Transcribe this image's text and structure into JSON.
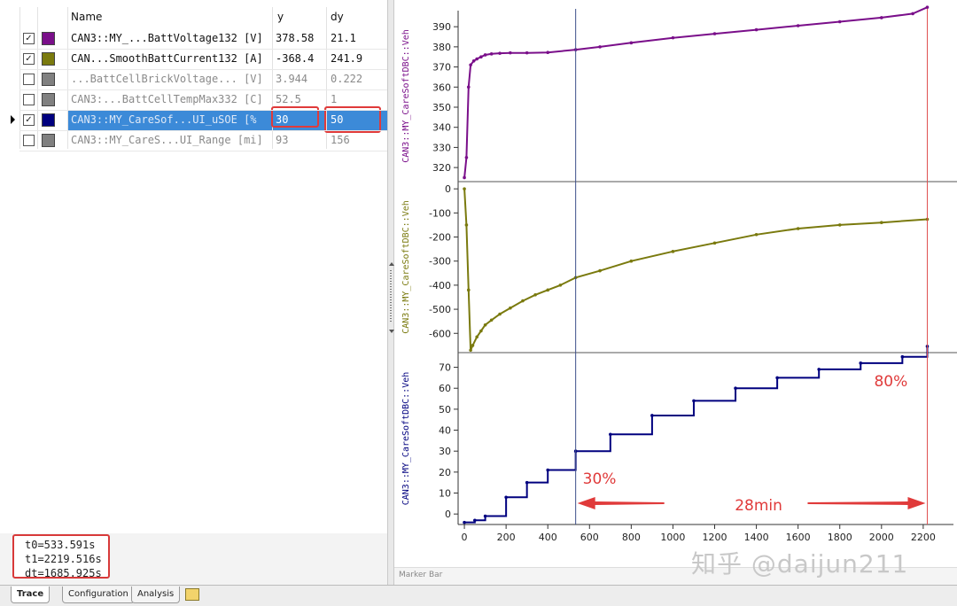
{
  "table": {
    "headers": {
      "name": "Name",
      "y": "y",
      "dy": "dy"
    },
    "rows": [
      {
        "name": "CAN3::MY_...BattVoltage132 [V]",
        "y": "378.58",
        "dy": "21.1",
        "color": "#7a0f8a",
        "checked": true,
        "active": true,
        "selected": false
      },
      {
        "name": "CAN...SmoothBattCurrent132 [A]",
        "y": "-368.4",
        "dy": "241.9",
        "color": "#7a7a0e",
        "checked": true,
        "active": true,
        "selected": false
      },
      {
        "name": "...BattCellBrickVoltage... [V]",
        "y": "3.944",
        "dy": "0.222",
        "color": "#808080",
        "checked": false,
        "active": false,
        "selected": false
      },
      {
        "name": "CAN3:...BattCellTempMax332 [C]",
        "y": "52.5",
        "dy": "1",
        "color": "#808080",
        "checked": false,
        "active": false,
        "selected": false
      },
      {
        "name": "CAN3::MY_CareSof...UI_uSOE [%",
        "y": "30",
        "dy": "50",
        "color": "#00007f",
        "checked": true,
        "active": true,
        "selected": true
      },
      {
        "name": "CAN3::MY_CareS...UI_Range [mi]",
        "y": "93",
        "dy": "156",
        "color": "#808080",
        "checked": false,
        "active": false,
        "selected": false
      }
    ]
  },
  "status": {
    "t0": "t0=533.591s",
    "t1": "t1=2219.516s",
    "dt": "dt=1685.925s"
  },
  "tabs": {
    "trace": "Trace",
    "configuration": "Configuration",
    "analysis": "Analysis"
  },
  "marker_bar": "Marker Bar",
  "watermark": "知乎 @daijun211",
  "chart_data": [
    {
      "type": "line",
      "ylabel": "CAN3::MY_CareSoftDBC::Veh",
      "ylim": [
        313,
        398
      ],
      "yticks": [
        320,
        330,
        340,
        350,
        360,
        370,
        380,
        390
      ],
      "xlim": [
        -30,
        2260
      ],
      "color": "#7a0f8a",
      "x": [
        0,
        10,
        20,
        30,
        45,
        60,
        80,
        100,
        130,
        170,
        220,
        300,
        400,
        533.591,
        650,
        800,
        1000,
        1200,
        1400,
        1600,
        1800,
        2000,
        2150,
        2219.516
      ],
      "y": [
        315,
        325,
        360,
        371,
        373,
        374,
        375,
        376,
        376.5,
        376.8,
        377,
        377,
        377.2,
        378.58,
        380,
        382,
        384.5,
        386.5,
        388.5,
        390.5,
        392.5,
        394.5,
        396.5,
        399.68
      ]
    },
    {
      "type": "line",
      "ylabel": "CAN3::MY_CareSoftDBC::Veh",
      "ylim": [
        -680,
        30
      ],
      "yticks": [
        0,
        -100,
        -200,
        -300,
        -400,
        -500,
        -600
      ],
      "xlim": [
        -30,
        2260
      ],
      "color": "#7a7a0e",
      "x": [
        0,
        10,
        20,
        30,
        40,
        60,
        80,
        100,
        130,
        170,
        220,
        280,
        340,
        400,
        460,
        533.591,
        650,
        800,
        1000,
        1200,
        1400,
        1600,
        1800,
        2000,
        2219.516
      ],
      "y": [
        0,
        -150,
        -420,
        -670,
        -650,
        -615,
        -590,
        -565,
        -545,
        -520,
        -495,
        -465,
        -440,
        -420,
        -400,
        -368.4,
        -340,
        -300,
        -260,
        -225,
        -190,
        -165,
        -150,
        -140,
        -126.5
      ]
    },
    {
      "type": "line",
      "ylabel": "CAN3::MY_CareSoftDBC::Veh",
      "ylim": [
        -5,
        77
      ],
      "yticks": [
        0,
        10,
        20,
        30,
        40,
        50,
        60,
        70
      ],
      "xlim": [
        -30,
        2260
      ],
      "xticks": [
        0,
        200,
        400,
        600,
        800,
        1000,
        1200,
        1400,
        1600,
        1800,
        2000,
        2200
      ],
      "color": "#00007f",
      "x": [
        0,
        50,
        100,
        200,
        300,
        400,
        533.591,
        700,
        900,
        1100,
        1300,
        1500,
        1700,
        1900,
        2100,
        2219.516
      ],
      "y": [
        -4,
        -3,
        -1,
        8,
        15,
        21,
        30,
        38,
        47,
        54,
        60,
        65,
        69,
        72,
        75,
        80
      ]
    }
  ],
  "cursors": {
    "t0": 533.591,
    "t1": 2219.516
  },
  "annotations": {
    "left_pct": "30%",
    "right_pct": "80%",
    "duration": "28min"
  }
}
